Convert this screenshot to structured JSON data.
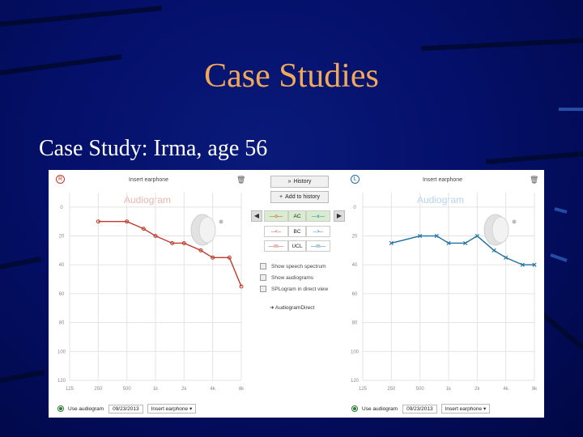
{
  "slide": {
    "title": "Case Studies",
    "subtitle": "Case Study:  Irma, age 56"
  },
  "panel": {
    "right_ear": {
      "ear_letter": "R",
      "header_label": "Insert earphone",
      "watermark": "Audiogram",
      "color": "#c0392b",
      "x_ticks": [
        "125",
        "250",
        "500",
        "1k",
        "2k",
        "4k",
        "8k"
      ],
      "y_ticks": [
        "0",
        "20",
        "40",
        "60",
        "80",
        "100",
        "120"
      ]
    },
    "left_ear": {
      "ear_letter": "L",
      "header_label": "Insert earphone",
      "watermark": "Audiogram",
      "color": "#1f6fa3",
      "x_ticks": [
        "125",
        "250",
        "500",
        "1k",
        "2k",
        "4k",
        "8k"
      ],
      "y_ticks": [
        "0",
        "20",
        "40",
        "60",
        "80",
        "100",
        "120"
      ]
    },
    "middle": {
      "history_button": "History",
      "add_history_button": "Add to history",
      "legend_rows": [
        {
          "left": "—o—",
          "label": "AC",
          "right": "—x—"
        },
        {
          "left": "--<--",
          "label": "BC",
          "right": "-->--"
        },
        {
          "left": "—m—",
          "label": "UCL",
          "right": "—m—"
        }
      ],
      "checkboxes": [
        "Show speech spectrum",
        "Show audiograms",
        "SPLogram in direct view"
      ],
      "link": "AudiogramDirect"
    },
    "bottom_right_ear": {
      "radio_label": "Use audiogram",
      "date": "09/23/2013",
      "select": "Insert earphone"
    },
    "bottom_left_ear": {
      "radio_label": "Use audiogram",
      "date": "09/23/2013",
      "select": "Insert earphone"
    }
  },
  "chart_data": [
    {
      "type": "line",
      "title": "Audiogram",
      "xlabel": "",
      "ylabel": "",
      "x": [
        250,
        500,
        750,
        1000,
        1500,
        2000,
        3000,
        4000,
        6000,
        8000
      ],
      "series": [
        {
          "values": [
            10,
            10,
            15,
            20,
            25,
            25,
            30,
            35,
            35,
            55
          ]
        }
      ],
      "ylim": [
        120,
        -10
      ],
      "grid": true
    },
    {
      "type": "line",
      "title": "Audiogram",
      "xlabel": "",
      "ylabel": "",
      "x": [
        250,
        500,
        750,
        1000,
        1500,
        2000,
        3000,
        4000,
        6000,
        8000
      ],
      "series": [
        {
          "values": [
            25,
            20,
            20,
            25,
            25,
            20,
            30,
            35,
            40,
            40
          ]
        }
      ],
      "ylim": [
        120,
        -10
      ],
      "grid": true
    }
  ]
}
